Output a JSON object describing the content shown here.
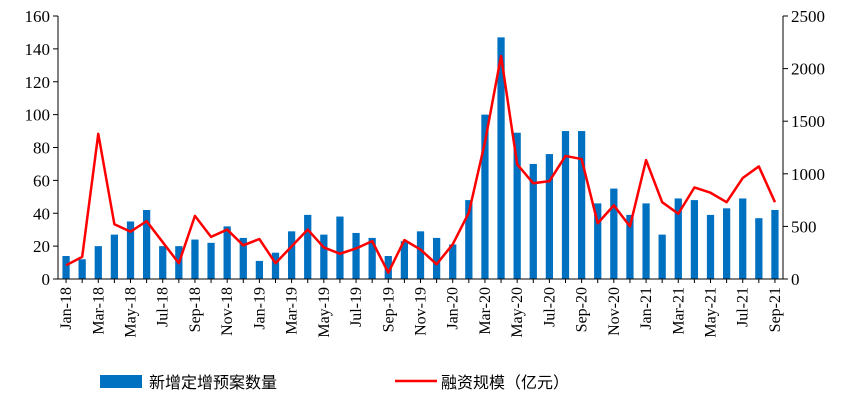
{
  "chart_data": {
    "type": "bar+line",
    "x": [
      "Jan-18",
      "Feb-18",
      "Mar-18",
      "Apr-18",
      "May-18",
      "Jun-18",
      "Jul-18",
      "Aug-18",
      "Sep-18",
      "Oct-18",
      "Nov-18",
      "Dec-18",
      "Jan-19",
      "Feb-19",
      "Mar-19",
      "Apr-19",
      "May-19",
      "Jun-19",
      "Jul-19",
      "Aug-19",
      "Sep-19",
      "Oct-19",
      "Nov-19",
      "Dec-19",
      "Jan-20",
      "Feb-20",
      "Mar-20",
      "Apr-20",
      "May-20",
      "Jun-20",
      "Jul-20",
      "Aug-20",
      "Sep-20",
      "Oct-20",
      "Nov-20",
      "Dec-20",
      "Jan-21",
      "Feb-21",
      "Mar-21",
      "Apr-21",
      "May-21",
      "Jun-21",
      "Jul-21",
      "Aug-21",
      "Sep-21"
    ],
    "tick_labels": [
      "Jan-18",
      "Mar-18",
      "May-18",
      "Jul-18",
      "Sep-18",
      "Nov-18",
      "Jan-19",
      "Mar-19",
      "May-19",
      "Jul-19",
      "Sep-19",
      "Nov-19",
      "Jan-20",
      "Mar-20",
      "May-20",
      "Jul-20",
      "Sep-20",
      "Nov-20",
      "Jan-21",
      "Mar-21",
      "May-21",
      "Jul-21",
      "Sep-21"
    ],
    "series": [
      {
        "name": "新增定增预案数量",
        "type": "bar",
        "axis": "left",
        "color": "#0070C0",
        "values": [
          14,
          12,
          20,
          27,
          35,
          42,
          20,
          20,
          24,
          22,
          32,
          25,
          11,
          16,
          29,
          39,
          27,
          38,
          28,
          25,
          14,
          23,
          29,
          25,
          21,
          48,
          100,
          147,
          89,
          70,
          76,
          90,
          90,
          46,
          55,
          39,
          46,
          27,
          49,
          48,
          39,
          43,
          49,
          37,
          42
        ]
      },
      {
        "name": "融资规模（亿元）",
        "type": "line",
        "axis": "right",
        "color": "#FF0000",
        "values": [
          130,
          210,
          1380,
          520,
          450,
          550,
          350,
          150,
          600,
          400,
          470,
          320,
          380,
          150,
          310,
          470,
          300,
          240,
          290,
          360,
          60,
          370,
          280,
          140,
          330,
          630,
          1300,
          2120,
          1090,
          910,
          930,
          1170,
          1140,
          530,
          700,
          500,
          1130,
          730,
          620,
          870,
          820,
          730,
          960,
          1070,
          730
        ]
      }
    ],
    "y_left": {
      "lim": [
        0,
        160
      ],
      "ticks": [
        0,
        20,
        40,
        60,
        80,
        100,
        120,
        140,
        160
      ]
    },
    "y_right": {
      "lim": [
        0,
        2500
      ],
      "ticks": [
        0,
        500,
        1000,
        1500,
        2000,
        2500
      ]
    },
    "grid": false,
    "legend_position": "bottom"
  }
}
